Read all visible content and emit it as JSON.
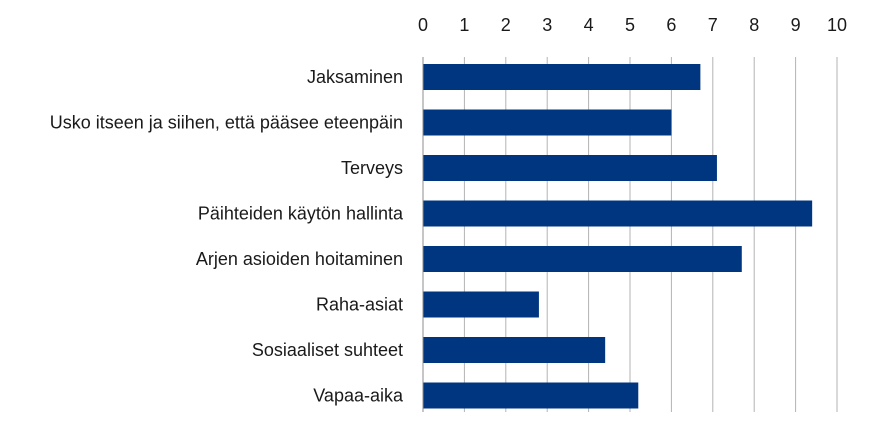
{
  "chart_data": {
    "type": "bar",
    "orientation": "horizontal",
    "title": "",
    "xlabel": "",
    "ylabel": "",
    "xlim": [
      0,
      10
    ],
    "x_ticks": [
      0,
      1,
      2,
      3,
      4,
      5,
      6,
      7,
      8,
      9,
      10
    ],
    "x_axis_position": "top",
    "grid": true,
    "legend": "none",
    "bar_color": "#003580",
    "categories": [
      "Jaksaminen",
      "Usko itseen ja siihen, että pääsee eteenpäin",
      "Terveys",
      "Päihteiden käytön hallinta",
      "Arjen asioiden hoitaminen",
      "Raha-asiat",
      "Sosiaaliset suhteet",
      "Vapaa-aika"
    ],
    "values": [
      6.7,
      6.0,
      7.1,
      9.4,
      7.7,
      2.8,
      4.4,
      5.2
    ]
  }
}
